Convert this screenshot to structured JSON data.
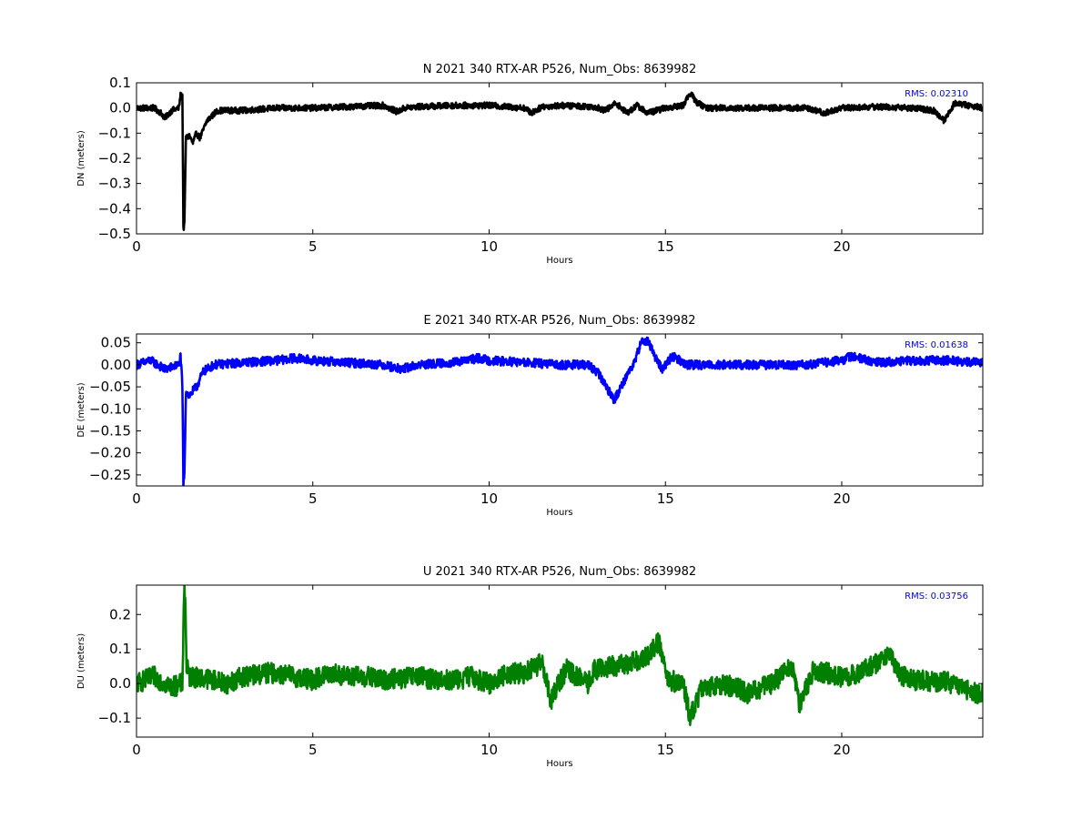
{
  "chart_data": [
    {
      "type": "line",
      "title": "N 2021 340 RTX-AR  P526, Num_Obs: 8639982",
      "xlabel": "Hours",
      "ylabel": "DN (meters)",
      "xlim": [
        0,
        24
      ],
      "ylim": [
        -0.5,
        0.1
      ],
      "xticks": [
        0,
        5,
        10,
        15,
        20
      ],
      "xtick_labels": [
        "0",
        "5",
        "10",
        "15",
        "20"
      ],
      "yticks": [
        0.1,
        0.0,
        -0.1,
        -0.2,
        -0.3,
        -0.4,
        -0.5
      ],
      "ytick_labels": [
        "0.1",
        "0.0",
        "−0.1",
        "−0.2",
        "−0.3",
        "−0.4",
        "−0.5"
      ],
      "annotation": "RMS:  0.02310",
      "annotation_color": "#0000ff",
      "grid": false,
      "series": [
        {
          "color": "#000000",
          "noise": 0.012,
          "x": [
            0,
            0.3,
            0.5,
            0.7,
            0.8,
            1.0,
            1.2,
            1.25,
            1.3,
            1.33,
            1.36,
            1.4,
            1.5,
            1.6,
            1.7,
            1.8,
            2.0,
            2.3,
            3,
            4,
            5,
            6,
            7,
            7.4,
            7.6,
            8,
            9,
            10,
            11,
            11.2,
            11.5,
            12,
            13,
            13.3,
            13.6,
            13.9,
            14.2,
            14.5,
            15,
            15.5,
            15.7,
            15.9,
            16.2,
            17,
            18,
            19,
            19.5,
            20,
            21,
            22,
            22.6,
            22.9,
            23.2,
            24
          ],
          "y": [
            0.0,
            0.0,
            0.0,
            -0.02,
            -0.04,
            -0.01,
            0.0,
            0.05,
            0.05,
            -0.48,
            -0.46,
            -0.12,
            -0.11,
            -0.14,
            -0.1,
            -0.12,
            -0.05,
            -0.01,
            -0.01,
            0.0,
            0.0,
            0.005,
            0.01,
            -0.015,
            0.0,
            0.005,
            0.01,
            0.01,
            0.0,
            -0.02,
            0.005,
            0.01,
            0.005,
            -0.01,
            0.02,
            -0.02,
            0.01,
            -0.02,
            0.0,
            0.01,
            0.06,
            0.02,
            0.0,
            0.0,
            0.0,
            0.0,
            -0.02,
            0.0,
            0.005,
            0.0,
            -0.01,
            -0.05,
            0.02,
            0.0
          ]
        }
      ]
    },
    {
      "type": "line",
      "title": "E 2021 340 RTX-AR  P526, Num_Obs: 8639982",
      "xlabel": "Hours",
      "ylabel": "DE (meters)",
      "xlim": [
        0,
        24
      ],
      "ylim": [
        -0.275,
        0.07
      ],
      "xticks": [
        0,
        5,
        10,
        15,
        20
      ],
      "xtick_labels": [
        "0",
        "5",
        "10",
        "15",
        "20"
      ],
      "yticks": [
        0.05,
        0.0,
        -0.05,
        -0.1,
        -0.15,
        -0.2,
        -0.25
      ],
      "ytick_labels": [
        "0.05",
        "0.00",
        "−0.05",
        "−0.10",
        "−0.15",
        "−0.20",
        "−0.25"
      ],
      "annotation": "RMS:  0.01638",
      "annotation_color": "#0000ff",
      "grid": false,
      "series": [
        {
          "color": "#0000ff",
          "noise": 0.01,
          "x": [
            0,
            0.4,
            0.8,
            1.2,
            1.25,
            1.3,
            1.33,
            1.36,
            1.4,
            1.5,
            1.7,
            1.9,
            2.2,
            3,
            4,
            4.5,
            5,
            6,
            7,
            7.5,
            8,
            9,
            9.7,
            10,
            11,
            12,
            12.8,
            13.1,
            13.4,
            13.55,
            13.8,
            14.0,
            14.1,
            14.3,
            14.5,
            14.7,
            14.9,
            15.2,
            15.6,
            16,
            17,
            18,
            19,
            20,
            20.3,
            21,
            22,
            23,
            24
          ],
          "y": [
            0.0,
            0.01,
            -0.01,
            0.0,
            0.02,
            -0.05,
            -0.27,
            -0.25,
            -0.06,
            -0.07,
            -0.05,
            -0.015,
            0.0,
            0.005,
            0.01,
            0.015,
            0.01,
            0.005,
            0.0,
            -0.01,
            0.0,
            0.005,
            0.015,
            0.01,
            0.005,
            0.0,
            0.0,
            -0.02,
            -0.06,
            -0.08,
            -0.04,
            -0.01,
            0.0,
            0.05,
            0.055,
            0.02,
            -0.01,
            0.02,
            0.0,
            0.0,
            0.0,
            0.0,
            0.0,
            0.01,
            0.02,
            0.005,
            0.01,
            0.01,
            0.005
          ]
        }
      ]
    },
    {
      "type": "line",
      "title": "U 2021 340 RTX-AR  P526, Num_Obs: 8639982",
      "xlabel": "Hours",
      "ylabel": "DU (meters)",
      "xlim": [
        0,
        24
      ],
      "ylim": [
        -0.155,
        0.285
      ],
      "xticks": [
        0,
        5,
        10,
        15,
        20
      ],
      "xtick_labels": [
        "0",
        "5",
        "10",
        "15",
        "20"
      ],
      "yticks": [
        0.2,
        0.1,
        0.0,
        -0.1
      ],
      "ytick_labels": [
        "0.2",
        "0.1",
        "0.0",
        "−0.1"
      ],
      "annotation": "RMS:  0.03756",
      "annotation_color": "#0000ff",
      "grid": false,
      "series": [
        {
          "color": "#007f00",
          "noise": 0.03,
          "x": [
            0,
            0.5,
            1.0,
            1.3,
            1.35,
            1.38,
            1.42,
            1.5,
            2,
            2.6,
            3,
            3.6,
            4,
            4.5,
            5,
            5.5,
            6,
            6.5,
            7,
            7.5,
            8,
            8.5,
            9,
            9.5,
            10,
            10.5,
            11,
            11.5,
            11.75,
            11.9,
            12.2,
            12.5,
            12.8,
            13,
            13.5,
            14,
            14.5,
            14.8,
            15.1,
            15.5,
            15.7,
            16,
            16.5,
            17,
            17.3,
            18,
            18.6,
            18.8,
            19.2,
            20,
            20.5,
            21,
            21.4,
            21.6,
            22,
            23,
            23.5,
            24
          ],
          "y": [
            0.0,
            0.02,
            -0.01,
            0.0,
            0.27,
            0.25,
            0.05,
            0.02,
            0.015,
            0.0,
            0.02,
            0.03,
            0.03,
            0.02,
            0.01,
            0.03,
            0.02,
            0.02,
            0.01,
            0.015,
            0.02,
            0.01,
            0.01,
            0.02,
            0.0,
            0.03,
            0.03,
            0.06,
            -0.05,
            -0.01,
            0.04,
            0.02,
            0.0,
            0.04,
            0.05,
            0.06,
            0.08,
            0.12,
            0.01,
            0.0,
            -0.1,
            -0.02,
            0.0,
            -0.01,
            -0.03,
            0.0,
            0.05,
            -0.06,
            0.04,
            0.02,
            0.03,
            0.06,
            0.09,
            0.03,
            0.01,
            0.005,
            -0.02,
            -0.03
          ]
        }
      ]
    }
  ]
}
